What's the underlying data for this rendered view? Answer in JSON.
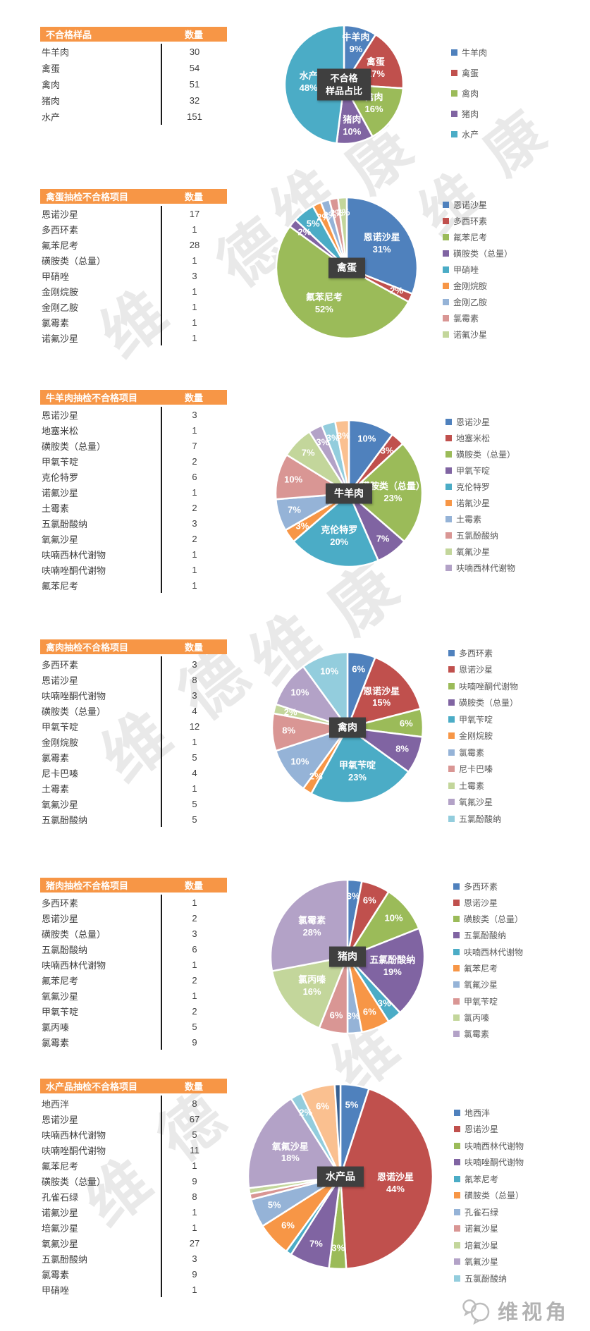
{
  "palette": [
    "#4F81BD",
    "#C0504D",
    "#9BBB59",
    "#8064A2",
    "#4BACC6",
    "#F79646",
    "#95B3D7",
    "#D99694",
    "#C3D69B",
    "#B3A2C7",
    "#93CDDD",
    "#FAC090",
    "#376092"
  ],
  "table_header_bg": "#F79646",
  "qty_header": "数量",
  "sections": [
    {
      "table": {
        "title": "不合格样品",
        "qty_label": "数量",
        "rows": [
          {
            "name": "牛羊肉",
            "value": "30"
          },
          {
            "name": "禽蛋",
            "value": "54"
          },
          {
            "name": "禽肉",
            "value": "51"
          },
          {
            "name": "猪肉",
            "value": "32"
          },
          {
            "name": "水产",
            "value": "151"
          }
        ]
      }
    },
    {
      "table": {
        "title": "禽蛋抽检不合格项目",
        "qty_label": "数量",
        "rows": [
          {
            "name": "恩诺沙星",
            "value": "17"
          },
          {
            "name": "多西环素",
            "value": "1"
          },
          {
            "name": "氟苯尼考",
            "value": "28"
          },
          {
            "name": "磺胺类（总量）",
            "value": "1"
          },
          {
            "name": "甲硝唑",
            "value": "3"
          },
          {
            "name": "金刚烷胺",
            "value": "1"
          },
          {
            "name": "金刚乙胺",
            "value": "1"
          },
          {
            "name": "氯霉素",
            "value": "1"
          },
          {
            "name": "诺氟沙星",
            "value": "1"
          }
        ]
      }
    },
    {
      "table": {
        "title": "牛羊肉抽检不合格项目",
        "qty_label": "数量",
        "rows": [
          {
            "name": "恩诺沙星",
            "value": "3"
          },
          {
            "name": "地塞米松",
            "value": "1"
          },
          {
            "name": "磺胺类（总量）",
            "value": "7"
          },
          {
            "name": "甲氧苄啶",
            "value": "2"
          },
          {
            "name": "克伦特罗",
            "value": "6"
          },
          {
            "name": "诺氟沙星",
            "value": "1"
          },
          {
            "name": "土霉素",
            "value": "2"
          },
          {
            "name": "五氯酚酸纳",
            "value": "3"
          },
          {
            "name": "氧氟沙星",
            "value": "2"
          },
          {
            "name": "呋喃西林代谢物",
            "value": "1"
          },
          {
            "name": "呋喃唑酮代谢物",
            "value": "1"
          },
          {
            "name": "氟苯尼考",
            "value": "1"
          }
        ]
      }
    },
    {
      "table": {
        "title": "禽肉抽检不合格项目",
        "qty_label": "数量",
        "rows": [
          {
            "name": "多西环素",
            "value": "3"
          },
          {
            "name": "恩诺沙星",
            "value": "8"
          },
          {
            "name": "呋喃唑酮代谢物",
            "value": "3"
          },
          {
            "name": "磺胺类（总量）",
            "value": "4"
          },
          {
            "name": "甲氧苄啶",
            "value": "12"
          },
          {
            "name": "金刚烷胺",
            "value": "1"
          },
          {
            "name": "氯霉素",
            "value": "5"
          },
          {
            "name": "尼卡巴嗪",
            "value": "4"
          },
          {
            "name": "土霉素",
            "value": "1"
          },
          {
            "name": "氧氟沙星",
            "value": "5"
          },
          {
            "name": "五氯酚酸纳",
            "value": "5"
          }
        ]
      }
    },
    {
      "table": {
        "title": "猪肉抽检不合格项目",
        "qty_label": "数量",
        "rows": [
          {
            "name": "多西环素",
            "value": "1"
          },
          {
            "name": "恩诺沙星",
            "value": "2"
          },
          {
            "name": "磺胺类（总量）",
            "value": "3"
          },
          {
            "name": "五氯酚酸纳",
            "value": "6"
          },
          {
            "name": "呋喃西林代谢物",
            "value": "1"
          },
          {
            "name": "氟苯尼考",
            "value": "2"
          },
          {
            "name": "氧氟沙星",
            "value": "1"
          },
          {
            "name": "甲氧苄啶",
            "value": "2"
          },
          {
            "name": "氯丙嗪",
            "value": "5"
          },
          {
            "name": "氯霉素",
            "value": "9"
          }
        ]
      }
    },
    {
      "table": {
        "title": "水产品抽检不合格项目",
        "qty_label": "数量",
        "rows": [
          {
            "name": "地西泮",
            "value": "8"
          },
          {
            "name": "恩诺沙星",
            "value": "67"
          },
          {
            "name": "呋喃西林代谢物",
            "value": "5"
          },
          {
            "name": "呋喃唑酮代谢物",
            "value": "11"
          },
          {
            "name": "氟苯尼考",
            "value": "1"
          },
          {
            "name": "磺胺类（总量）",
            "value": "9"
          },
          {
            "name": "孔雀石绿",
            "value": "8"
          },
          {
            "name": "诺氟沙星",
            "value": "1"
          },
          {
            "name": "培氟沙星",
            "value": "1"
          },
          {
            "name": "氧氟沙星",
            "value": "27"
          },
          {
            "name": "五氯酚酸纳",
            "value": "3"
          },
          {
            "name": "氯霉素",
            "value": "9"
          },
          {
            "name": "甲硝唑",
            "value": "1"
          }
        ]
      }
    }
  ],
  "chart_data": [
    {
      "type": "pie",
      "center_label": "不合格\n样品占比",
      "labels": [
        "牛羊肉",
        "禽蛋",
        "禽肉",
        "猪肉",
        "水产"
      ],
      "values": [
        30,
        54,
        51,
        32,
        151
      ],
      "pct_labels": [
        9,
        17,
        16,
        10,
        48
      ],
      "legend_visible_count": 5,
      "name_label_min_pct": 0,
      "legend_position": "right"
    },
    {
      "type": "pie",
      "center_label": "禽蛋",
      "labels": [
        "恩诺沙星",
        "多西环素",
        "氟苯尼考",
        "磺胺类（总量）",
        "甲硝唑",
        "金刚烷胺",
        "金刚乙胺",
        "氯霉素",
        "诺氟沙星"
      ],
      "values": [
        17,
        1,
        28,
        1,
        3,
        1,
        1,
        1,
        1
      ],
      "pct_labels": [
        31,
        2,
        52,
        2,
        5,
        2,
        2,
        2,
        2
      ],
      "legend_visible_count": 9,
      "name_label_min_pct": 15,
      "legend_position": "right"
    },
    {
      "type": "pie",
      "center_label": "牛羊肉",
      "labels": [
        "恩诺沙星",
        "地塞米松",
        "磺胺类（总量）",
        "甲氧苄啶",
        "克伦特罗",
        "诺氟沙星",
        "土霉素",
        "五氯酚酸纳",
        "氧氟沙星",
        "呋喃西林代谢物",
        "呋喃唑酮代谢物",
        "氟苯尼考"
      ],
      "values": [
        3,
        1,
        7,
        2,
        6,
        1,
        2,
        3,
        2,
        1,
        1,
        1
      ],
      "pct_labels": [
        10,
        3,
        23,
        7,
        20,
        3,
        7,
        10,
        7,
        3,
        3,
        3
      ],
      "legend_visible_count": 10,
      "name_label_min_pct": 15,
      "legend_position": "right"
    },
    {
      "type": "pie",
      "center_label": "禽肉",
      "labels": [
        "多西环素",
        "恩诺沙星",
        "呋喃唑酮代谢物",
        "磺胺类（总量）",
        "甲氧苄啶",
        "金刚烷胺",
        "氯霉素",
        "尼卡巴嗪",
        "土霉素",
        "氧氟沙星",
        "五氯酚酸纳"
      ],
      "values": [
        3,
        8,
        3,
        4,
        12,
        1,
        5,
        4,
        1,
        5,
        5
      ],
      "pct_labels": [
        6,
        15,
        6,
        8,
        23,
        2,
        10,
        8,
        2,
        10,
        10
      ],
      "legend_visible_count": 11,
      "name_label_min_pct": 15,
      "legend_position": "right"
    },
    {
      "type": "pie",
      "center_label": "猪肉",
      "labels": [
        "多西环素",
        "恩诺沙星",
        "磺胺类（总量）",
        "五氯酚酸纳",
        "呋喃西林代谢物",
        "氟苯尼考",
        "氧氟沙星",
        "甲氧苄啶",
        "氯丙嗪",
        "氯霉素"
      ],
      "values": [
        1,
        2,
        3,
        6,
        1,
        2,
        1,
        2,
        5,
        9
      ],
      "pct_labels": [
        3,
        6,
        10,
        19,
        3,
        6,
        3,
        6,
        16,
        28
      ],
      "legend_visible_count": 10,
      "name_label_min_pct": 15,
      "legend_position": "right"
    },
    {
      "type": "pie",
      "center_label": "水产品",
      "labels": [
        "地西泮",
        "恩诺沙星",
        "呋喃西林代谢物",
        "呋喃唑酮代谢物",
        "氟苯尼考",
        "磺胺类（总量）",
        "孔雀石绿",
        "诺氟沙星",
        "培氟沙星",
        "氧氟沙星",
        "五氯酚酸纳",
        "氯霉素",
        "甲硝唑"
      ],
      "values": [
        8,
        67,
        5,
        11,
        1,
        9,
        8,
        1,
        1,
        27,
        3,
        9,
        1
      ],
      "pct_labels": [
        5,
        44,
        3,
        7,
        1,
        6,
        5,
        1,
        1,
        18,
        2,
        6,
        1
      ],
      "legend_visible_count": 11,
      "name_label_min_pct": 15,
      "legend_position": "right"
    }
  ],
  "watermark_chars": [
    "维",
    "康",
    "德",
    "维",
    "康",
    "维",
    "维",
    "德",
    "维",
    "康",
    "维",
    "德",
    "维"
  ],
  "logo": {
    "text": "维视角"
  }
}
